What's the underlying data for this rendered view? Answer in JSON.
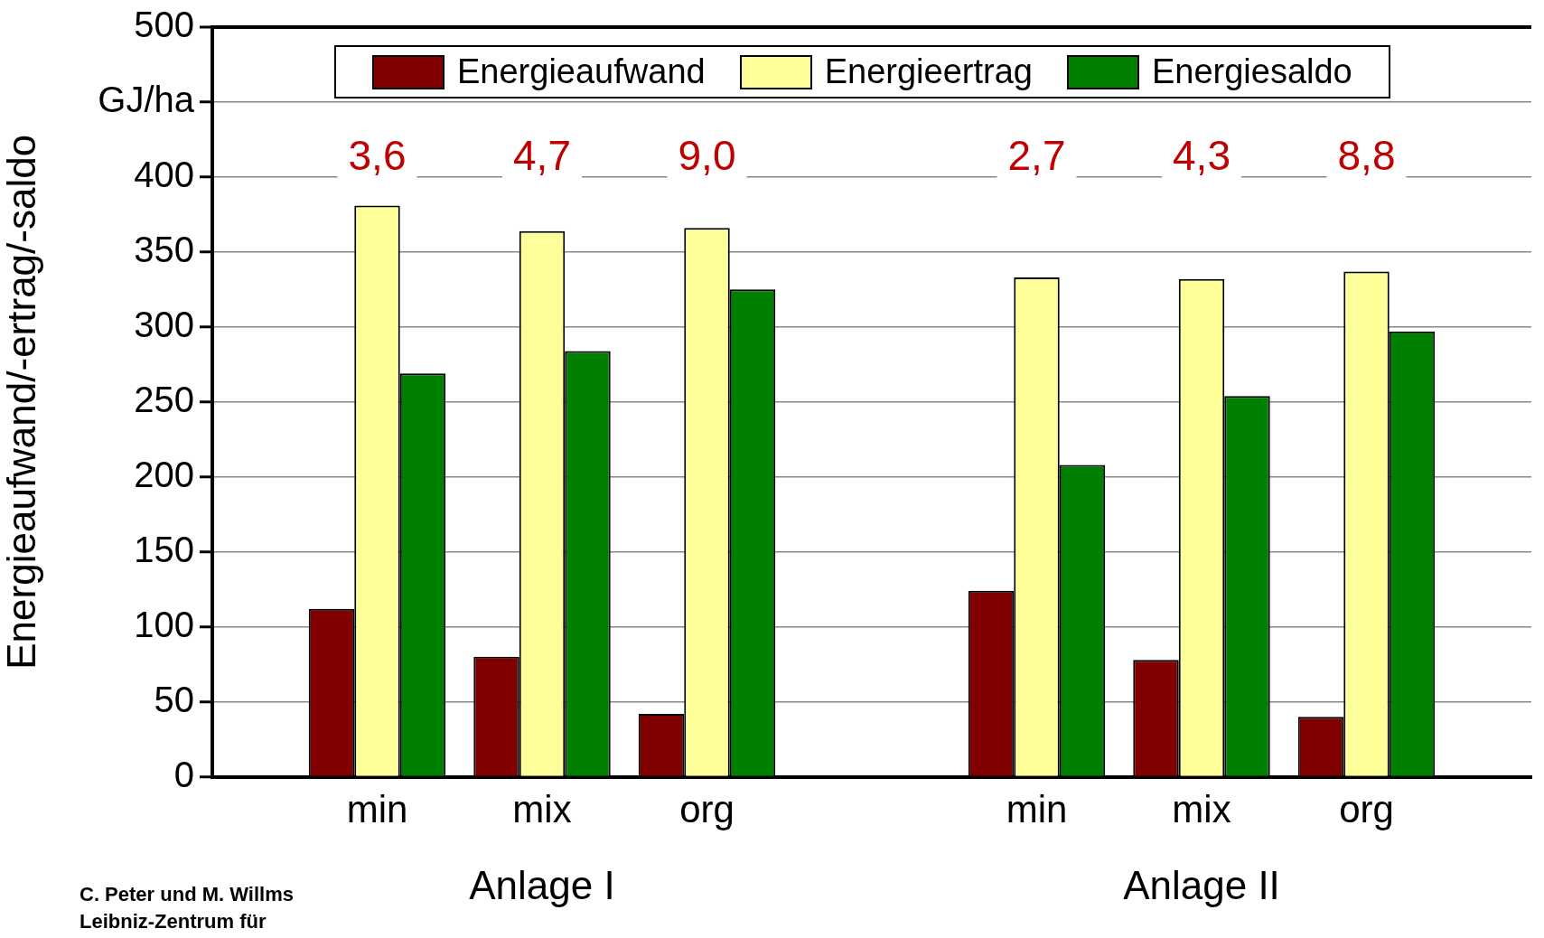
{
  "chart_data": {
    "type": "bar",
    "ylabel": "Energieaufwand/-ertrag/-saldo",
    "categories": [
      null,
      "min",
      "mix",
      "org",
      null,
      "min",
      "mix",
      "org",
      null
    ],
    "series": [
      {
        "name": "Energieaufwand",
        "color": "#800000",
        "values": [
          null,
          112,
          80,
          42,
          null,
          124,
          78,
          40,
          null
        ]
      },
      {
        "name": "Energieertrag",
        "color": "#ffff99",
        "values": [
          null,
          381,
          364,
          366,
          null,
          333,
          332,
          337,
          null
        ]
      },
      {
        "name": "Energiesaldo",
        "color": "#008000",
        "values": [
          null,
          269,
          284,
          325,
          null,
          208,
          254,
          297,
          null
        ]
      }
    ],
    "ylim": [
      0,
      500
    ],
    "yticks": [
      0,
      50,
      100,
      150,
      200,
      250,
      300,
      350,
      400,
      {
        "value": 450,
        "label": "GJ/ha"
      },
      500
    ],
    "grid": "y",
    "legend": "top",
    "annotations": [
      "3,6",
      "4,7",
      "9,0",
      "2,7",
      "4,3",
      "8,8",
      "Anlage I",
      "Anlage II",
      "C. Peter und M. Willms",
      "Leibniz-Zentrum für"
    ]
  }
}
